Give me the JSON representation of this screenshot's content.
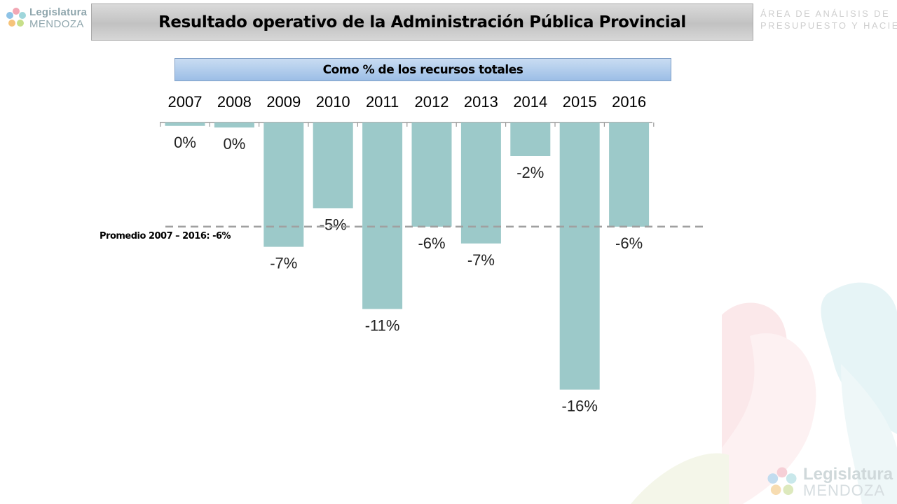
{
  "header": {
    "title": "Resultado operativo de la Administración Pública Provincial",
    "department_line1": "ÁREA DE ANÁLISIS DE",
    "department_line2": "PRESUPUESTO Y HACIENDA"
  },
  "logo": {
    "name": "Legislatura",
    "sub": "MENDOZA"
  },
  "chart_data": {
    "type": "bar",
    "title": "Como % de los recursos totales",
    "categories": [
      "2007",
      "2008",
      "2009",
      "2010",
      "2011",
      "2012",
      "2013",
      "2014",
      "2015",
      "2016"
    ],
    "values": [
      0,
      0,
      -7,
      -5,
      -11,
      -6,
      -7,
      -2,
      -16,
      -6
    ],
    "value_labels": [
      "0%",
      "0%",
      "-7%",
      "-5%",
      "-11%",
      "-6%",
      "-7%",
      "-2%",
      "-16%",
      "-6%"
    ],
    "raw_estimates": [
      -0.2,
      -0.3,
      -7.4,
      -5.1,
      -11.1,
      -6.2,
      -7.2,
      -2.0,
      -15.9,
      -6.2
    ],
    "ylim": [
      -16,
      0
    ],
    "bar_color": "#9cc9c9",
    "reference_line": {
      "label": "Promedio 2007 – 2016: -6%",
      "value": -6.2,
      "color": "#a0a0a0"
    },
    "grid": false,
    "xlabel": "",
    "ylabel": ""
  }
}
